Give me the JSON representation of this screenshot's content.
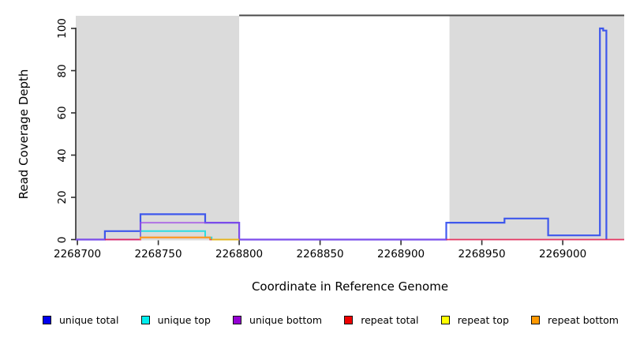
{
  "chart_data": {
    "type": "line",
    "title": "",
    "xlabel": "Coordinate in Reference Genome",
    "ylabel": "Read Coverage Depth",
    "xlim": [
      2268699,
      2269038
    ],
    "ylim": [
      0,
      106
    ],
    "grid": false,
    "x_ticks": [
      {
        "v": 2268700,
        "label": "2268700"
      },
      {
        "v": 2268750,
        "label": "2268750"
      },
      {
        "v": 2268800,
        "label": "2268800"
      },
      {
        "v": 2268850,
        "label": "2268850"
      },
      {
        "v": 2268900,
        "label": "2268900"
      },
      {
        "v": 2268950,
        "label": "2268950"
      },
      {
        "v": 2269000,
        "label": "2269000"
      }
    ],
    "y_ticks": [
      {
        "v": 0,
        "label": "0"
      },
      {
        "v": 20,
        "label": "20"
      },
      {
        "v": 40,
        "label": "40"
      },
      {
        "v": 60,
        "label": "60"
      },
      {
        "v": 80,
        "label": "80"
      },
      {
        "v": 100,
        "label": "100"
      }
    ],
    "background_shading": {
      "color": "#dbdbdb",
      "regions": [
        {
          "x0": 2268699,
          "x1": 2268800
        },
        {
          "x0": 2268930,
          "x1": 2269038
        }
      ]
    },
    "top_annotation_line": {
      "x0": 2268800,
      "x1": 2269038,
      "color": "#4a4a4a"
    },
    "series": [
      {
        "name": "unique total",
        "color": "#2240ee",
        "opacity": 0.85,
        "width": 2.2,
        "segments": [
          [
            [
              2268699,
              0
            ],
            [
              2268717,
              0
            ],
            [
              2268717,
              4
            ],
            [
              2268739,
              4
            ],
            [
              2268739,
              12
            ],
            [
              2268779,
              12
            ],
            [
              2268779,
              8
            ],
            [
              2268800,
              8
            ],
            [
              2268800,
              0
            ],
            [
              2268928,
              0
            ],
            [
              2268928,
              8
            ],
            [
              2268964,
              8
            ],
            [
              2268964,
              10
            ],
            [
              2268991,
              10
            ],
            [
              2268991,
              2
            ],
            [
              2269023,
              2
            ],
            [
              2269023,
              100
            ],
            [
              2269025,
              100
            ],
            [
              2269025,
              99
            ],
            [
              2269027,
              99
            ],
            [
              2269027,
              0
            ]
          ]
        ]
      },
      {
        "name": "unique top",
        "color": "#00dde4",
        "opacity": 0.8,
        "width": 2,
        "segments": [
          [
            [
              2268739,
              0
            ],
            [
              2268739,
              4
            ],
            [
              2268779,
              4
            ],
            [
              2268779,
              1
            ],
            [
              2268783,
              1
            ],
            [
              2268783,
              0
            ],
            [
              2268800,
              0
            ]
          ]
        ]
      },
      {
        "name": "unique bottom",
        "color": "#9d44e8",
        "opacity": 0.7,
        "width": 2,
        "segments": [
          [
            [
              2268699,
              0
            ],
            [
              2268739,
              0
            ],
            [
              2268739,
              8
            ],
            [
              2268800,
              8
            ],
            [
              2268800,
              0
            ],
            [
              2268928,
              0
            ]
          ]
        ]
      },
      {
        "name": "repeat total",
        "color": "#e8194b",
        "opacity": 0.85,
        "width": 1.8,
        "segments": [
          [
            [
              2268717,
              0
            ],
            [
              2268739,
              0
            ],
            [
              2268739,
              1
            ],
            [
              2268782,
              1
            ],
            [
              2268782,
              0
            ],
            [
              2268800,
              0
            ]
          ],
          [
            [
              2268928,
              0
            ],
            [
              2269038,
              0
            ]
          ]
        ]
      },
      {
        "name": "repeat top",
        "color": "#f5e400",
        "opacity": 0.7,
        "width": 2,
        "segments": [
          [
            [
              2268783,
              0
            ],
            [
              2268800,
              0
            ]
          ]
        ]
      },
      {
        "name": "repeat bottom",
        "color": "#ff9d1e",
        "opacity": 1,
        "width": 2,
        "segments": [
          [
            [
              2268739,
              0
            ],
            [
              2268739,
              1
            ],
            [
              2268782,
              1
            ],
            [
              2268782,
              0
            ]
          ]
        ]
      }
    ],
    "legend": [
      {
        "label": "unique total",
        "color": "#0000EE"
      },
      {
        "label": "unique top",
        "color": "#00EEEE"
      },
      {
        "label": "unique bottom",
        "color": "#9400D3"
      },
      {
        "label": "repeat total",
        "color": "#EE0000"
      },
      {
        "label": "repeat top",
        "color": "#FFFF00"
      },
      {
        "label": "repeat bottom",
        "color": "#FF9900"
      }
    ]
  }
}
